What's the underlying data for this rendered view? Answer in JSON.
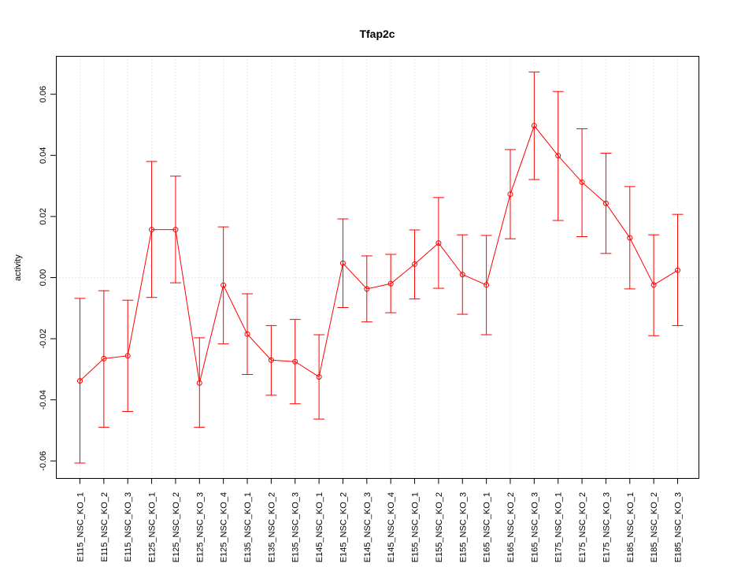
{
  "chart_data": {
    "type": "line",
    "title": "Tfap2c",
    "xlabel": "",
    "ylabel": "activity",
    "ylim": [
      -0.065,
      0.072
    ],
    "yticks": [
      -0.06,
      -0.04,
      -0.02,
      0.0,
      0.02,
      0.04,
      0.06
    ],
    "ytick_labels": [
      "-0.06",
      "-0.04",
      "-0.02",
      "0.00",
      "0.02",
      "0.04",
      "0.06"
    ],
    "grid": true,
    "categories": [
      "E115_NSC_KO_1",
      "E115_NSC_KO_2",
      "E115_NSC_KO_3",
      "E125_NSC_KO_1",
      "E125_NSC_KO_2",
      "E125_NSC_KO_3",
      "E125_NSC_KO_4",
      "E135_NSC_KO_1",
      "E135_NSC_KO_2",
      "E135_NSC_KO_3",
      "E145_NSC_KO_1",
      "E145_NSC_KO_2",
      "E145_NSC_KO_3",
      "E145_NSC_KO_4",
      "E155_NSC_KO_1",
      "E155_NSC_KO_2",
      "E155_NSC_KO_3",
      "E165_NSC_KO_1",
      "E165_NSC_KO_2",
      "E165_NSC_KO_3",
      "E175_NSC_KO_1",
      "E175_NSC_KO_2",
      "E175_NSC_KO_3",
      "E185_NSC_KO_1",
      "E185_NSC_KO_2",
      "E185_NSC_KO_3"
    ],
    "series": [
      {
        "color": "#ff0000",
        "values": [
          -0.0338,
          -0.0265,
          -0.0256,
          0.0157,
          0.0157,
          -0.0345,
          -0.0025,
          -0.0185,
          -0.027,
          -0.0275,
          -0.0325,
          0.0047,
          -0.0037,
          -0.002,
          0.0044,
          0.0113,
          0.001,
          -0.0024,
          0.0273,
          0.0497,
          0.0399,
          0.0312,
          0.0243,
          0.013,
          -0.0024,
          0.0024
        ],
        "upper": [
          -0.0068,
          -0.0043,
          -0.0074,
          0.038,
          0.0332,
          -0.0197,
          0.0166,
          -0.0053,
          -0.0157,
          -0.0137,
          -0.0187,
          0.0192,
          0.0071,
          0.0076,
          0.0156,
          0.0262,
          0.014,
          0.0138,
          0.0419,
          0.0673,
          0.0609,
          0.0487,
          0.0407,
          0.0298,
          0.014,
          0.0207
        ],
        "lower": [
          -0.0607,
          -0.049,
          -0.0438,
          -0.0065,
          -0.0017,
          -0.049,
          -0.0217,
          -0.0317,
          -0.0385,
          -0.0413,
          -0.0463,
          -0.0098,
          -0.0145,
          -0.0115,
          -0.007,
          -0.0035,
          -0.012,
          -0.0187,
          0.0127,
          0.0321,
          0.0187,
          0.0134,
          0.0079,
          -0.0037,
          -0.019,
          -0.0157
        ]
      }
    ]
  }
}
